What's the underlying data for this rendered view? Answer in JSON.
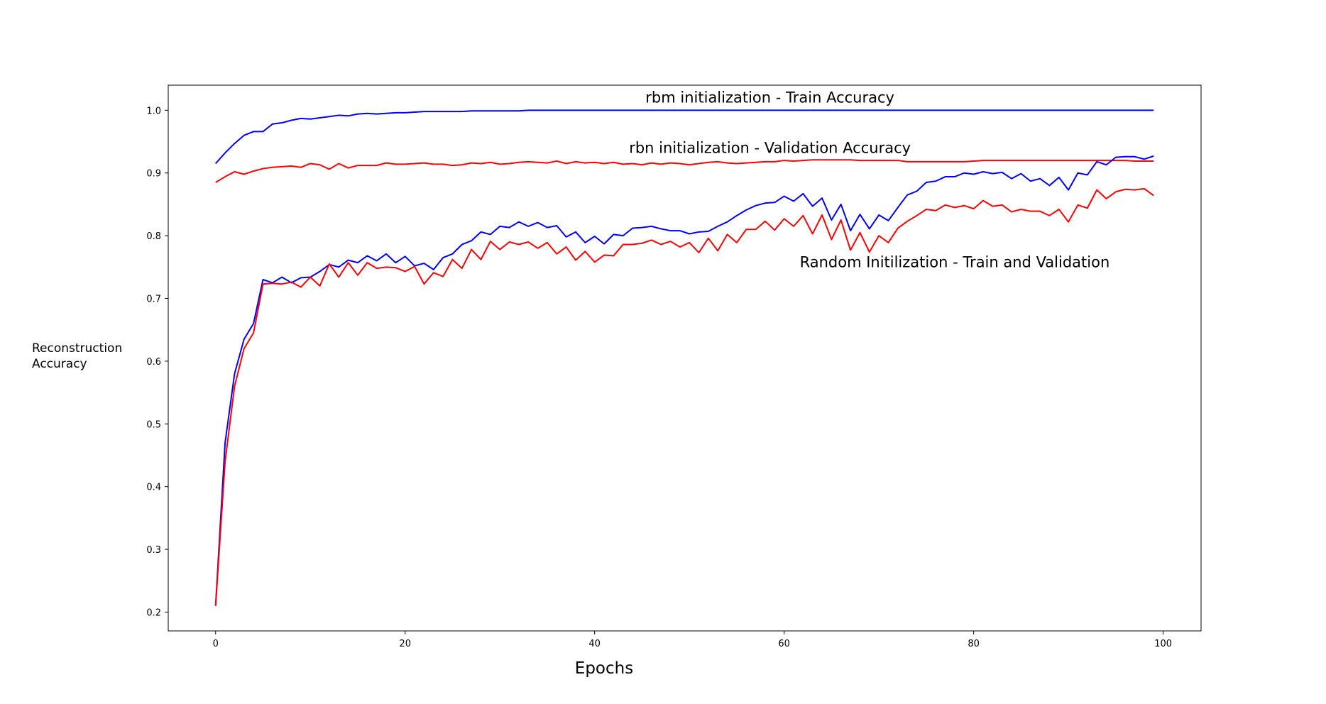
{
  "chart_data": {
    "type": "line",
    "title": "",
    "xlabel": "Epochs",
    "ylabel_lines": [
      "Reconstruction",
      "Accuracy"
    ],
    "xlim": [
      -5,
      104
    ],
    "ylim": [
      0.17,
      1.04
    ],
    "xticks": [
      0,
      20,
      40,
      60,
      80,
      100
    ],
    "yticks": [
      0.2,
      0.3,
      0.4,
      0.5,
      0.6,
      0.7,
      0.8,
      0.9,
      1.0
    ],
    "xtick_labels": [
      "0",
      "20",
      "40",
      "60",
      "80",
      "100"
    ],
    "ytick_labels": [
      "0.2",
      "0.3",
      "0.4",
      "0.5",
      "0.6",
      "0.7",
      "0.8",
      "0.9",
      "1.0"
    ],
    "grid": false,
    "annotations": [
      {
        "text": "rbm initialization - Train Accuracy",
        "x": 58.5,
        "y": 1.012
      },
      {
        "text": "rbn initialization - Validation Accuracy",
        "x": 58.5,
        "y": 0.932
      },
      {
        "text": "Random Initilization - Train and Validation",
        "x": 78,
        "y": 0.75
      }
    ],
    "series": [
      {
        "color": "#0000ff",
        "x_start": 0,
        "values": [
          0.915,
          0.932,
          0.947,
          0.96,
          0.966,
          0.966,
          0.978,
          0.98,
          0.984,
          0.987,
          0.986,
          0.988,
          0.99,
          0.992,
          0.991,
          0.994,
          0.995,
          0.994,
          0.995,
          0.996,
          0.996,
          0.997,
          0.998,
          0.998,
          0.998,
          0.998,
          0.998,
          0.999,
          0.999,
          0.999,
          0.999,
          0.999,
          0.999,
          1.0,
          1.0,
          1.0,
          1.0,
          1.0,
          1.0,
          1.0,
          1.0,
          1.0,
          1.0,
          1.0,
          1.0,
          1.0,
          1.0,
          1.0,
          1.0,
          1.0,
          1.0,
          1.0,
          1.0,
          1.0,
          1.0,
          1.0,
          1.0,
          1.0,
          1.0,
          1.0,
          1.0,
          1.0,
          1.0,
          1.0,
          1.0,
          1.0,
          1.0,
          1.0,
          1.0,
          1.0,
          1.0,
          1.0,
          1.0,
          1.0,
          1.0,
          1.0,
          1.0,
          1.0,
          1.0,
          1.0,
          1.0,
          1.0,
          1.0,
          1.0,
          1.0,
          1.0,
          1.0,
          1.0,
          1.0,
          1.0,
          1.0,
          1.0,
          1.0,
          1.0,
          1.0,
          1.0,
          1.0,
          1.0,
          1.0,
          1.0
        ]
      },
      {
        "color": "#ff0000",
        "x_start": 0,
        "values": [
          0.885,
          0.894,
          0.902,
          0.898,
          0.903,
          0.907,
          0.909,
          0.91,
          0.911,
          0.909,
          0.915,
          0.913,
          0.906,
          0.915,
          0.908,
          0.912,
          0.912,
          0.912,
          0.916,
          0.914,
          0.914,
          0.915,
          0.916,
          0.914,
          0.914,
          0.912,
          0.913,
          0.916,
          0.915,
          0.917,
          0.914,
          0.915,
          0.917,
          0.918,
          0.917,
          0.916,
          0.919,
          0.915,
          0.918,
          0.916,
          0.917,
          0.915,
          0.917,
          0.914,
          0.915,
          0.913,
          0.916,
          0.914,
          0.916,
          0.915,
          0.913,
          0.915,
          0.917,
          0.918,
          0.916,
          0.915,
          0.916,
          0.917,
          0.918,
          0.918,
          0.92,
          0.919,
          0.92,
          0.921,
          0.921,
          0.921,
          0.921,
          0.921,
          0.92,
          0.92,
          0.92,
          0.92,
          0.92,
          0.918,
          0.918,
          0.918,
          0.918,
          0.918,
          0.918,
          0.918,
          0.919,
          0.92,
          0.92,
          0.92,
          0.92,
          0.92,
          0.92,
          0.92,
          0.92,
          0.92,
          0.92,
          0.92,
          0.92,
          0.92,
          0.92,
          0.92,
          0.92,
          0.919,
          0.919,
          0.919
        ]
      },
      {
        "color": "#0000ff",
        "x_start": 0,
        "values": [
          0.21,
          0.47,
          0.58,
          0.635,
          0.66,
          0.73,
          0.725,
          0.734,
          0.725,
          0.733,
          0.734,
          0.743,
          0.754,
          0.75,
          0.761,
          0.757,
          0.768,
          0.76,
          0.771,
          0.757,
          0.767,
          0.752,
          0.756,
          0.746,
          0.765,
          0.771,
          0.786,
          0.792,
          0.806,
          0.802,
          0.815,
          0.813,
          0.822,
          0.815,
          0.821,
          0.813,
          0.816,
          0.798,
          0.806,
          0.789,
          0.799,
          0.787,
          0.802,
          0.8,
          0.812,
          0.813,
          0.815,
          0.811,
          0.808,
          0.808,
          0.803,
          0.806,
          0.807,
          0.815,
          0.822,
          0.832,
          0.841,
          0.848,
          0.852,
          0.853,
          0.863,
          0.855,
          0.867,
          0.847,
          0.86,
          0.825,
          0.85,
          0.808,
          0.834,
          0.811,
          0.833,
          0.824,
          0.845,
          0.865,
          0.871,
          0.885,
          0.887,
          0.894,
          0.894,
          0.9,
          0.898,
          0.902,
          0.899,
          0.901,
          0.891,
          0.899,
          0.887,
          0.891,
          0.88,
          0.893,
          0.873,
          0.9,
          0.897,
          0.918,
          0.913,
          0.925,
          0.926,
          0.926,
          0.922,
          0.927
        ]
      },
      {
        "color": "#ff0000",
        "x_start": 0,
        "values": [
          0.21,
          0.44,
          0.56,
          0.62,
          0.645,
          0.723,
          0.724,
          0.723,
          0.726,
          0.718,
          0.734,
          0.72,
          0.755,
          0.734,
          0.757,
          0.737,
          0.757,
          0.748,
          0.75,
          0.749,
          0.743,
          0.751,
          0.723,
          0.741,
          0.735,
          0.762,
          0.748,
          0.778,
          0.762,
          0.791,
          0.778,
          0.79,
          0.786,
          0.79,
          0.78,
          0.789,
          0.771,
          0.782,
          0.761,
          0.775,
          0.758,
          0.769,
          0.768,
          0.786,
          0.786,
          0.788,
          0.793,
          0.786,
          0.791,
          0.782,
          0.789,
          0.773,
          0.796,
          0.776,
          0.802,
          0.789,
          0.81,
          0.81,
          0.823,
          0.809,
          0.827,
          0.815,
          0.832,
          0.803,
          0.833,
          0.794,
          0.825,
          0.777,
          0.805,
          0.774,
          0.8,
          0.789,
          0.812,
          0.823,
          0.832,
          0.842,
          0.84,
          0.849,
          0.845,
          0.848,
          0.843,
          0.856,
          0.847,
          0.849,
          0.838,
          0.842,
          0.839,
          0.839,
          0.832,
          0.842,
          0.822,
          0.849,
          0.844,
          0.873,
          0.859,
          0.87,
          0.874,
          0.873,
          0.875,
          0.864
        ]
      }
    ]
  }
}
